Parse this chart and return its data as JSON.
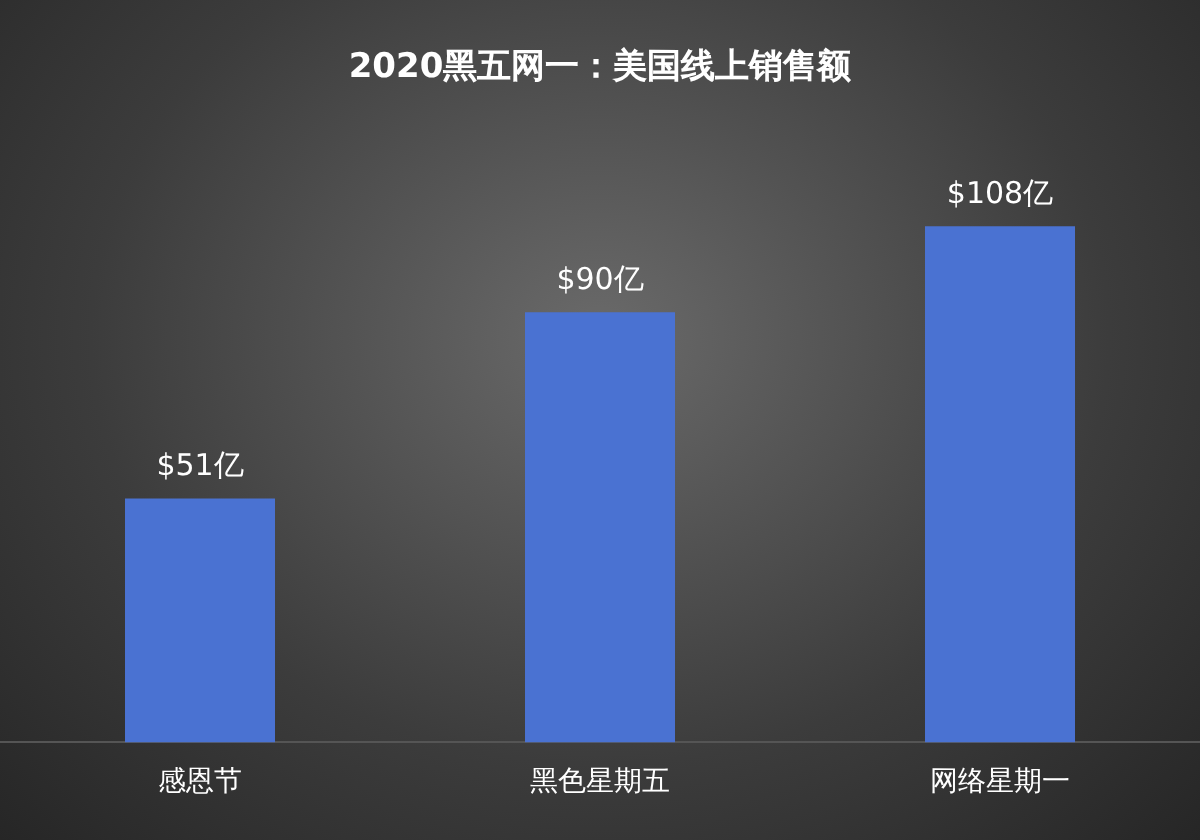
{
  "chart_data": {
    "type": "bar",
    "title": "2020黑五网一：美国线上销售额",
    "categories": [
      "感恩节",
      "黑色星期五",
      "网络星期一"
    ],
    "values": [
      51,
      90,
      108
    ],
    "value_labels": [
      "$51亿",
      "$90亿",
      "$108亿"
    ],
    "color": "#4a72d2",
    "grid": false,
    "legend": false
  }
}
